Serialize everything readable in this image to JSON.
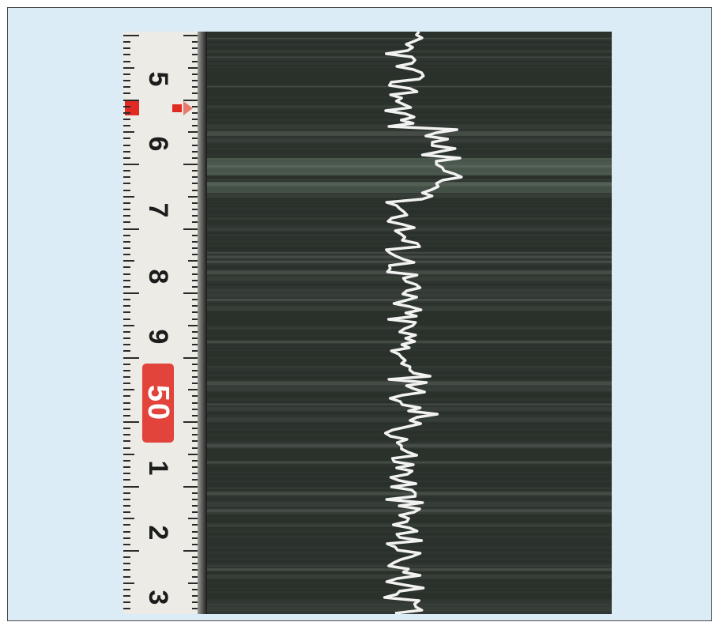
{
  "figure": {
    "background_color": "#dcecf6",
    "core_color": "#2f3530",
    "ruler_color": "#ecebe6",
    "log_line_color": "#f2f2f2",
    "ruler_labels": [
      "5",
      "6",
      "7",
      "8",
      "9",
      "1",
      "2",
      "3"
    ],
    "ruler_badge": "50"
  }
}
